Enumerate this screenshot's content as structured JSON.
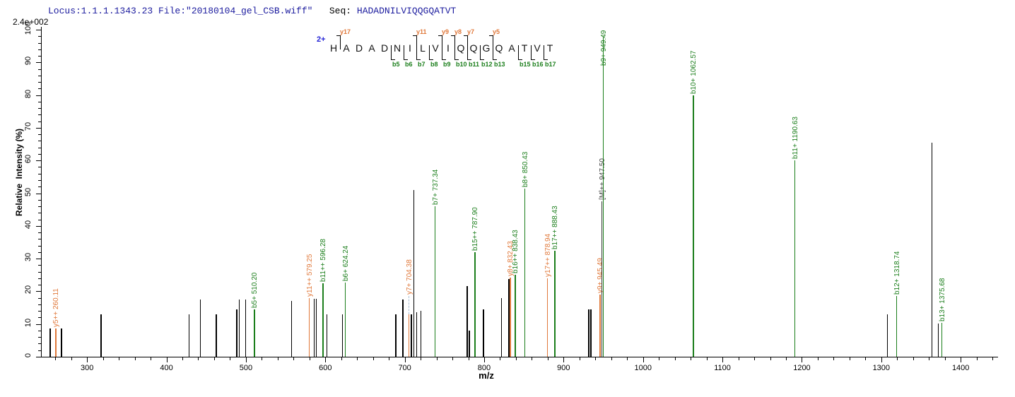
{
  "header": {
    "locus_text": "Locus:1.1.1.1343.23 File:\"20180104_gel_CSB.wiff\"",
    "seq_label": "Seq:",
    "seq_value": "HADADNILVIQQGQATVT",
    "max_intensity": "2.4e+002"
  },
  "peptide": {
    "charge_label": "2+",
    "sequence": "HADADNILVIQQGQATVT",
    "y_ions": [
      {
        "name": "y17",
        "gap": 1
      },
      {
        "name": "y11",
        "gap": 7
      },
      {
        "name": "y9",
        "gap": 9
      },
      {
        "name": "y8",
        "gap": 10
      },
      {
        "name": "y7",
        "gap": 11
      },
      {
        "name": "y5",
        "gap": 13
      }
    ],
    "b_ions": [
      {
        "name": "b5",
        "gap": 5
      },
      {
        "name": "b6",
        "gap": 6
      },
      {
        "name": "b7",
        "gap": 7
      },
      {
        "name": "b8",
        "gap": 8
      },
      {
        "name": "b9",
        "gap": 9
      },
      {
        "name": "b10",
        "gap": 10
      },
      {
        "name": "b11",
        "gap": 11
      },
      {
        "name": "b12",
        "gap": 12
      },
      {
        "name": "b13",
        "gap": 13
      },
      {
        "name": "b15",
        "gap": 15
      },
      {
        "name": "b16",
        "gap": 16
      },
      {
        "name": "b17",
        "gap": 17
      }
    ]
  },
  "axes": {
    "xlabel": "m/z",
    "ylabel": "Relative  Intensity (%)",
    "xlim": [
      242,
      1447
    ],
    "ylim": [
      0,
      100
    ],
    "x_major_ticks": [
      300,
      400,
      500,
      600,
      700,
      800,
      900,
      1000,
      1100,
      1200,
      1300,
      1400
    ],
    "x_minor_step": 20,
    "y_major_ticks": [
      0,
      10,
      20,
      30,
      40,
      50,
      60,
      70,
      80,
      90,
      100
    ],
    "y_minor_step": 2
  },
  "colors": {
    "b_ion": "#1b7e1b",
    "y_ion": "#e0783a",
    "precursor": "#3f3f3f",
    "peak": "#000000",
    "header_navy": "#1b1b9e",
    "charge_blue": "#2424d6",
    "dash": "#a9bed4"
  },
  "chart_data": {
    "type": "bar",
    "subtype": "ms2-fragment-spectrum",
    "title": "Locus:1.1.1.1343.23 File:\"20180104_gel_CSB.wiff\" Seq: HADADNILVIQQGQATVT",
    "xlabel": "m/z",
    "ylabel": "Relative  Intensity (%)",
    "xlim": [
      242,
      1447
    ],
    "ylim": [
      0,
      100
    ],
    "grid": false,
    "max_intensity_counts": "2.4e+002",
    "peaks": [
      {
        "mz": 253.0,
        "intensity": 8.6,
        "type": "peak"
      },
      {
        "mz": 260.11,
        "intensity": 8.6,
        "type": "y",
        "label": "y5++ 260.11"
      },
      {
        "mz": 267.0,
        "intensity": 8.6,
        "type": "peak"
      },
      {
        "mz": 317.0,
        "intensity": 13.0,
        "type": "peak"
      },
      {
        "mz": 428.0,
        "intensity": 13.0,
        "type": "peak"
      },
      {
        "mz": 442.0,
        "intensity": 17.5,
        "type": "peak"
      },
      {
        "mz": 462.0,
        "intensity": 13.0,
        "type": "peak"
      },
      {
        "mz": 488.0,
        "intensity": 14.5,
        "type": "peak"
      },
      {
        "mz": 491.0,
        "intensity": 17.5,
        "type": "peak"
      },
      {
        "mz": 499.0,
        "intensity": 17.5,
        "type": "peak"
      },
      {
        "mz": 510.2,
        "intensity": 14.5,
        "type": "b",
        "label": "b5+ 510.20"
      },
      {
        "mz": 557.0,
        "intensity": 17.0,
        "type": "peak"
      },
      {
        "mz": 579.25,
        "intensity": 18.0,
        "type": "y",
        "label": "y11++ 579.25"
      },
      {
        "mz": 585.5,
        "intensity": 17.8,
        "type": "peak"
      },
      {
        "mz": 588.0,
        "intensity": 17.8,
        "type": "peak"
      },
      {
        "mz": 596.28,
        "intensity": 22.5,
        "type": "b",
        "label": "b11++ 596.28"
      },
      {
        "mz": 601.5,
        "intensity": 13.0,
        "type": "peak"
      },
      {
        "mz": 621.0,
        "intensity": 13.0,
        "type": "peak"
      },
      {
        "mz": 624.24,
        "intensity": 22.7,
        "type": "b",
        "label": "b6+ 624.24"
      },
      {
        "mz": 688.0,
        "intensity": 13.0,
        "type": "peak"
      },
      {
        "mz": 697.0,
        "intensity": 17.5,
        "type": "peak"
      },
      {
        "mz": 704.38,
        "intensity": 13.0,
        "type": "y",
        "label": "y7+ 704.38",
        "dash_top": 18.5
      },
      {
        "mz": 707.5,
        "intensity": 13.0,
        "type": "peak"
      },
      {
        "mz": 711.0,
        "intensity": 51.0,
        "type": "peak"
      },
      {
        "mz": 714.5,
        "intensity": 13.5,
        "type": "peak"
      },
      {
        "mz": 719.5,
        "intensity": 14.0,
        "type": "peak"
      },
      {
        "mz": 737.34,
        "intensity": 46.0,
        "type": "b",
        "label": "b7+ 737.34"
      },
      {
        "mz": 777.8,
        "intensity": 21.5,
        "type": "peak"
      },
      {
        "mz": 780.5,
        "intensity": 8.0,
        "type": "peak"
      },
      {
        "mz": 787.9,
        "intensity": 32.0,
        "type": "b",
        "label": "b15++ 787.90"
      },
      {
        "mz": 798.5,
        "intensity": 14.5,
        "type": "peak"
      },
      {
        "mz": 821.0,
        "intensity": 18.0,
        "type": "peak"
      },
      {
        "mz": 830.4,
        "intensity": 23.8,
        "type": "peak"
      },
      {
        "mz": 832.43,
        "intensity": 24.2,
        "type": "y",
        "label": "y8+ 832.43"
      },
      {
        "mz": 838.43,
        "intensity": 25.0,
        "type": "b",
        "label": "b16++ 838.43"
      },
      {
        "mz": 850.43,
        "intensity": 51.5,
        "type": "b",
        "label": "b8+ 850.43"
      },
      {
        "mz": 878.94,
        "intensity": 24.0,
        "type": "y",
        "label": "y17++ 878.94"
      },
      {
        "mz": 888.43,
        "intensity": 32.5,
        "type": "b",
        "label": "b17++ 888.43"
      },
      {
        "mz": 931.0,
        "intensity": 14.5,
        "type": "peak"
      },
      {
        "mz": 933.5,
        "intensity": 14.5,
        "type": "peak"
      },
      {
        "mz": 945.49,
        "intensity": 19.0,
        "type": "y",
        "label": "y9+ 945.49"
      },
      {
        "mz": 947.5,
        "intensity": 47.5,
        "type": "precursor",
        "label": "[M]++ 947.50"
      },
      {
        "mz": 949.49,
        "intensity": 98.0,
        "type": "b",
        "label": "b9+ 949.49",
        "label_dy": 42
      },
      {
        "mz": 1062.57,
        "intensity": 80.0,
        "type": "b",
        "label": "b10+ 1062.57"
      },
      {
        "mz": 1190.63,
        "intensity": 60.0,
        "type": "b",
        "label": "b11+ 1190.63"
      },
      {
        "mz": 1307.0,
        "intensity": 13.0,
        "type": "peak"
      },
      {
        "mz": 1318.74,
        "intensity": 18.5,
        "type": "b",
        "label": "b12+ 1318.74"
      },
      {
        "mz": 1363.3,
        "intensity": 65.5,
        "type": "peak"
      },
      {
        "mz": 1371.3,
        "intensity": 10.2,
        "type": "peak"
      },
      {
        "mz": 1375.68,
        "intensity": 10.4,
        "type": "b",
        "label": "b13+ 1375.68"
      }
    ]
  }
}
